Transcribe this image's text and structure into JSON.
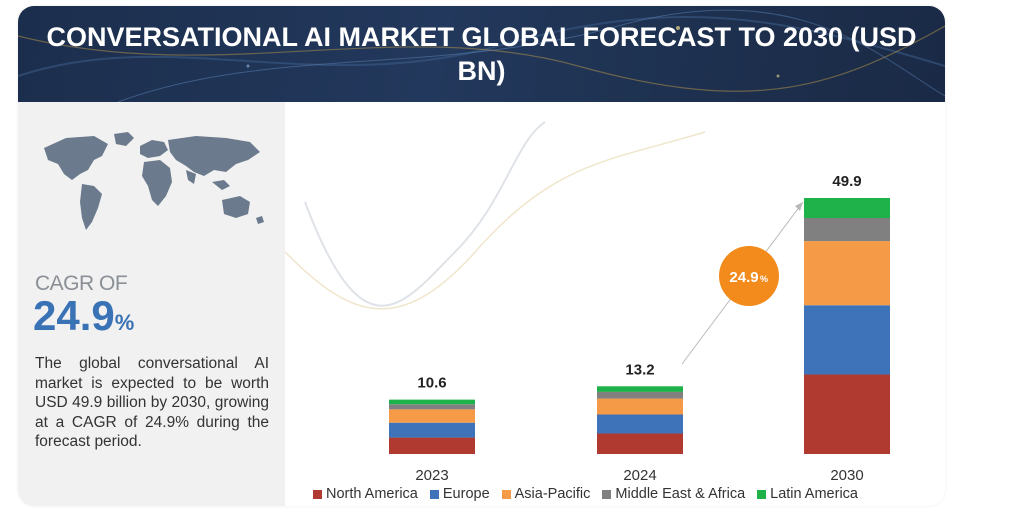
{
  "header": {
    "title": "CONVERSATIONAL AI MARKET GLOBAL FORECAST TO 2030 (USD BN)"
  },
  "left_panel": {
    "cagr_label": "CAGR OF",
    "cagr_number": "24.9",
    "cagr_unit": "%",
    "description": "The global conversational AI market is expected to be worth USD 49.9 billion by 2030, growing at a CAGR of 24.9% during the forecast period."
  },
  "callout": {
    "value": "24.9",
    "unit": "%"
  },
  "colors": {
    "header_bg": "#1e3150",
    "cagr_blue": "#3a73b5",
    "callout_orange": "#f28b1c"
  },
  "chart_data": {
    "type": "bar",
    "stacked": true,
    "categories": [
      "2023",
      "2024",
      "2030"
    ],
    "totals": [
      "10.6",
      "13.2",
      "49.9"
    ],
    "series": [
      {
        "name": "North America",
        "color": "#b13a30",
        "values": [
          3.2,
          4.0,
          15.5
        ]
      },
      {
        "name": "Europe",
        "color": "#3e73b9",
        "values": [
          2.9,
          3.7,
          13.5
        ]
      },
      {
        "name": "Asia-Pacific",
        "color": "#f59b48",
        "values": [
          2.6,
          3.1,
          12.5
        ]
      },
      {
        "name": "Middle East & Africa",
        "color": "#808080",
        "values": [
          1.0,
          1.3,
          4.5
        ]
      },
      {
        "name": "Latin America",
        "color": "#1fb24a",
        "values": [
          0.9,
          1.1,
          3.9
        ]
      }
    ],
    "ylim": [
      0,
      49.9
    ],
    "grid": false,
    "legend_position": "bottom"
  }
}
